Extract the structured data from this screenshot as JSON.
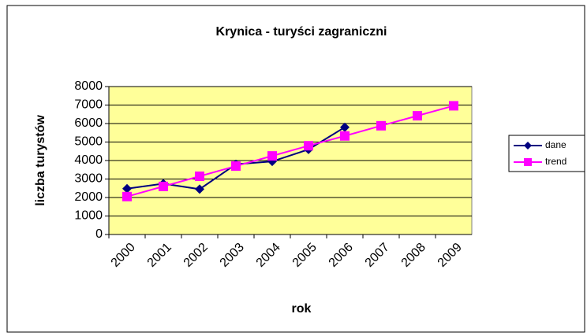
{
  "chart_data": {
    "type": "line",
    "title": "Krynica - turyści zagraniczni",
    "x_label": "rok",
    "y_label": "liczba turystów",
    "categories": [
      "2000",
      "2001",
      "2002",
      "2003",
      "2004",
      "2005",
      "2006",
      "2007",
      "2008",
      "2009"
    ],
    "series": [
      {
        "name": "dane",
        "color": "#000080",
        "marker": "diamond",
        "values": [
          2480,
          2750,
          2450,
          3800,
          3950,
          4600,
          5800,
          null,
          null,
          null
        ]
      },
      {
        "name": "trend",
        "color": "#ff00ff",
        "marker": "square",
        "values": [
          2050,
          2600,
          3150,
          3700,
          4250,
          4800,
          5330,
          5880,
          6420,
          6960
        ]
      }
    ],
    "ylim": [
      0,
      8000
    ],
    "yticks": [
      0,
      1000,
      2000,
      3000,
      4000,
      5000,
      6000,
      7000,
      8000
    ],
    "grid": true,
    "legend": "right",
    "plot_background": "#ffff99"
  }
}
